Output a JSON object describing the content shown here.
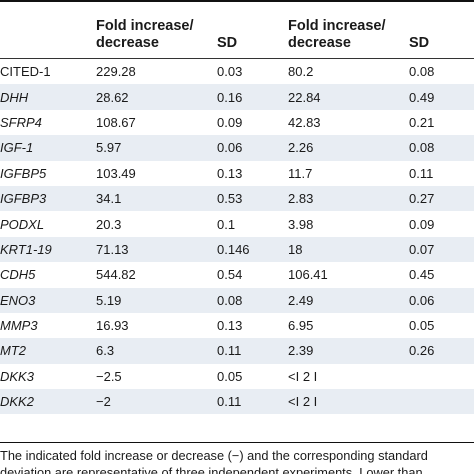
{
  "table": {
    "headers": {
      "gene": "",
      "fold1": "Fold increase/ decrease",
      "sd1": "SD",
      "fold2": "Fold increase/ decrease",
      "sd2": "SD"
    },
    "rows": [
      {
        "gene": "CITED-1",
        "italic": false,
        "fold1": "229.28",
        "sd1": "0.03",
        "fold2": "80.2",
        "sd2": "0.08"
      },
      {
        "gene": "DHH",
        "italic": true,
        "fold1": "28.62",
        "sd1": "0.16",
        "fold2": "22.84",
        "sd2": "0.49"
      },
      {
        "gene": "SFRP4",
        "italic": true,
        "fold1": "108.67",
        "sd1": "0.09",
        "fold2": "42.83",
        "sd2": "0.21"
      },
      {
        "gene": "IGF-1",
        "italic": true,
        "fold1": "5.97",
        "sd1": "0.06",
        "fold2": "2.26",
        "sd2": "0.08"
      },
      {
        "gene": "IGFBP5",
        "italic": true,
        "fold1": "103.49",
        "sd1": "0.13",
        "fold2": "11.7",
        "sd2": "0.11"
      },
      {
        "gene": "IGFBP3",
        "italic": true,
        "fold1": "34.1",
        "sd1": "0.53",
        "fold2": "2.83",
        "sd2": "0.27"
      },
      {
        "gene": "PODXL",
        "italic": true,
        "fold1": "20.3",
        "sd1": "0.1",
        "fold2": "3.98",
        "sd2": "0.09"
      },
      {
        "gene": "KRT1-19",
        "italic": true,
        "fold1": "71.13",
        "sd1": "0.146",
        "fold2": "18",
        "sd2": "0.07"
      },
      {
        "gene": "CDH5",
        "italic": true,
        "fold1": "544.82",
        "sd1": "0.54",
        "fold2": "106.41",
        "sd2": "0.45"
      },
      {
        "gene": "ENO3",
        "italic": true,
        "fold1": "5.19",
        "sd1": "0.08",
        "fold2": "2.49",
        "sd2": "0.06"
      },
      {
        "gene": "MMP3",
        "italic": true,
        "fold1": "16.93",
        "sd1": "0.13",
        "fold2": "6.95",
        "sd2": "0.05"
      },
      {
        "gene": "MT2",
        "italic": true,
        "fold1": "6.3",
        "sd1": "0.11",
        "fold2": "2.39",
        "sd2": "0.26"
      },
      {
        "gene": "DKK3",
        "italic": true,
        "fold1": "−2.5",
        "sd1": "0.05",
        "fold2": "<I 2 I",
        "sd2": ""
      },
      {
        "gene": "DKK2",
        "italic": true,
        "fold1": "−2",
        "sd1": "0.11",
        "fold2": "<I 2 I",
        "sd2": ""
      }
    ]
  },
  "footnote": {
    "line1": "The indicated fold increase or decrease (−) and the corresponding standard",
    "line2": "deviation are representative of three independent experiments. Lower than"
  },
  "colors": {
    "shade": "#e8edf3",
    "rule": "#111111"
  }
}
